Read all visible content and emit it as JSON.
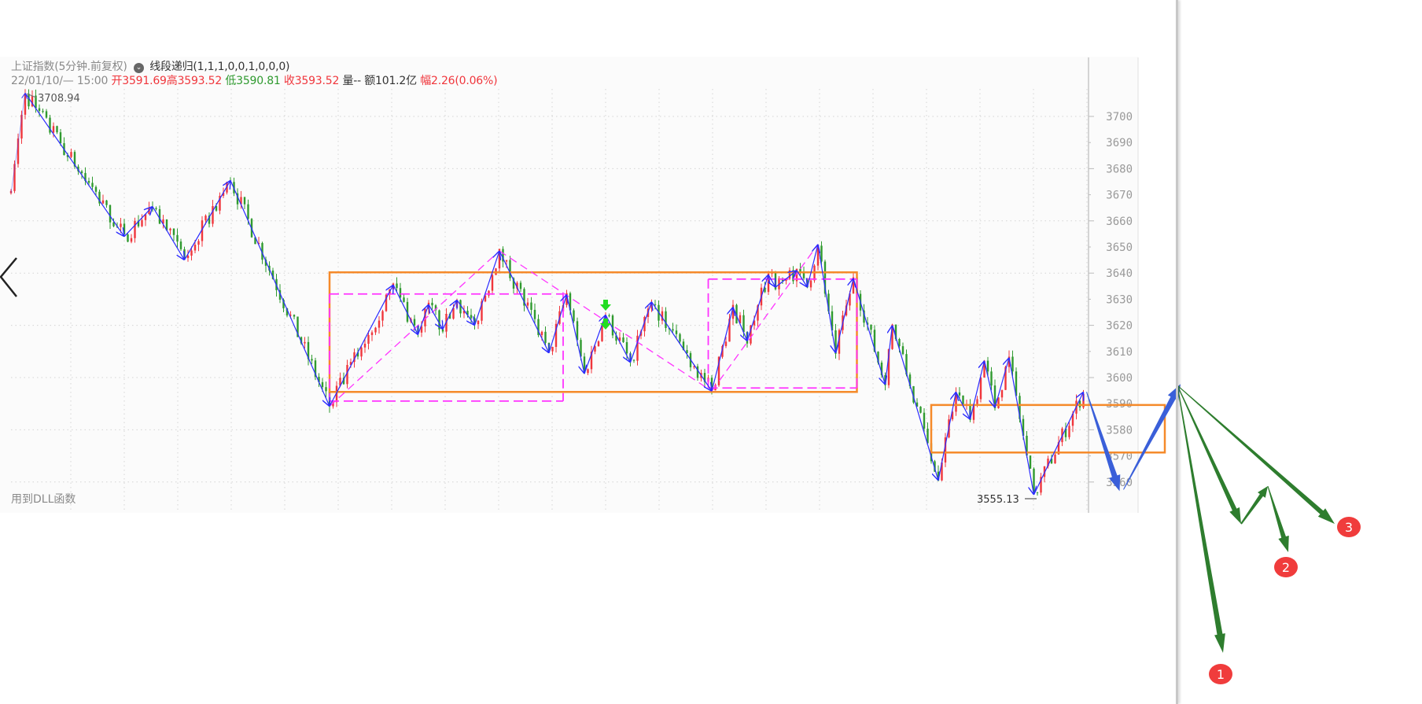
{
  "header": {
    "instrument": "上证指数(5分钟.前复权)",
    "indicator": "线段递归(1,1,1,0,0,1,0,0,0)",
    "datetime": "22/01/10/— 15:00",
    "open": "开3591.69",
    "high": "高3593.52",
    "low": "低3590.81",
    "close": "收3593.52",
    "volume": "量--",
    "amount": "额101.2亿",
    "change": "幅2.26(0.06%)"
  },
  "footer_note": "用到DLL函数",
  "badges": [
    "1",
    "2",
    "3"
  ],
  "colors": {
    "up": "#f0363c",
    "down": "#2f9a2f",
    "zigzag": "#2b2bff",
    "box": "#f58a2a",
    "segment": "#ff33ff",
    "projection": "#3a5fd9",
    "scenario": "#2e7d2e",
    "badge": "#f03c3c"
  },
  "chart_data": {
    "type": "candlestick",
    "ylim": [
      3550,
      3712
    ],
    "yticks": [
      "3700",
      "3690",
      "3680",
      "3670",
      "3660",
      "3650",
      "3640",
      "3630",
      "3620",
      "3610",
      "3600",
      "3590",
      "3580",
      "3570",
      "3560"
    ],
    "grid": true,
    "high_label": "3708.94",
    "low_label": "3555.13",
    "zigzag": [
      [
        0,
        3670.6
      ],
      [
        4,
        3708.94
      ],
      [
        32,
        3654
      ],
      [
        40,
        3665.5
      ],
      [
        49,
        3645
      ],
      [
        62,
        3675.5
      ],
      [
        90,
        3589
      ],
      [
        108,
        3635.5
      ],
      [
        115,
        3616.4
      ],
      [
        118,
        3628
      ],
      [
        122,
        3618.5
      ],
      [
        126,
        3629.7
      ],
      [
        131,
        3620
      ],
      [
        138,
        3648.5
      ],
      [
        152,
        3609.4
      ],
      [
        157,
        3631.8
      ],
      [
        162,
        3601.5
      ],
      [
        168,
        3624
      ],
      [
        175,
        3605.8
      ],
      [
        181,
        3629
      ],
      [
        198,
        3594.8
      ],
      [
        204,
        3627
      ],
      [
        208,
        3614
      ],
      [
        214,
        3639.4
      ],
      [
        216,
        3634.6
      ],
      [
        222,
        3641
      ],
      [
        225,
        3634.6
      ],
      [
        228,
        3651
      ],
      [
        233,
        3609.4
      ],
      [
        238,
        3638
      ],
      [
        247,
        3597.3
      ],
      [
        249,
        3620
      ],
      [
        262,
        3560.6
      ],
      [
        267,
        3594.5
      ],
      [
        271,
        3584
      ],
      [
        275,
        3606.4
      ],
      [
        278,
        3588.5
      ],
      [
        282,
        3607.6
      ],
      [
        289,
        3555.13
      ],
      [
        303,
        3594.5
      ]
    ],
    "central_zones": [
      {
        "from_bar": 90,
        "to_bar": 239,
        "high": 3640.3,
        "low": 3594.5
      },
      {
        "from_bar": 260,
        "to_bar": 326,
        "high": 3589.5,
        "low": 3571.3
      }
    ],
    "segments_dashed": [
      [
        [
          90,
          3589
        ],
        [
          138,
          3648.5
        ]
      ],
      [
        [
          138,
          3648.5
        ],
        [
          198,
          3594.8
        ]
      ],
      [
        [
          198,
          3594.8
        ],
        [
          228,
          3651
        ]
      ]
    ],
    "segment_boxes": [
      {
        "from_bar": 90,
        "to_bar": 156,
        "high": 3632,
        "low": 3591
      },
      {
        "from_bar": 197,
        "to_bar": 239,
        "high": 3637.7,
        "low": 3596
      }
    ],
    "signal_bar": 168,
    "projection": [
      [
        303,
        3594.5
      ],
      [
        313,
        3556.5
      ],
      [
        330,
        3597.5
      ]
    ]
  }
}
